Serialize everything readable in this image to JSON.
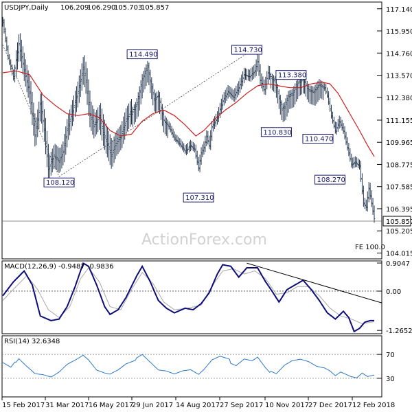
{
  "chart_data": [
    {
      "type": "ohlc",
      "title": "USDJPY,Daily",
      "ohlc_last": {
        "open": "106.209",
        "high": "106.290",
        "low": "105.703",
        "close": "105.857"
      },
      "current_price_label": "105.857",
      "fe_label": "FE 100.0",
      "watermark": "ActionForex.com",
      "ylim": [
        103.7,
        117.5
      ],
      "y_ticks": [
        "117.140",
        "115.950",
        "114.760",
        "113.570",
        "112.380",
        "111.155",
        "109.965",
        "108.775",
        "107.585",
        "106.395",
        "105.205",
        "104.015"
      ],
      "x_labels": [
        "15 Feb 2017",
        "31 Mar 2017",
        "16 May 2017",
        "29 Jun 2017",
        "14 Aug 2017",
        "27 Sep 2017",
        "10 Nov 2017",
        "27 Dec 2017",
        "12 Feb 2018"
      ],
      "price_series": [
        [
          0,
          116.5
        ],
        [
          4,
          114.6
        ],
        [
          8,
          113.5
        ],
        [
          12,
          115.2
        ],
        [
          16,
          113.8
        ],
        [
          20,
          112.6
        ],
        [
          24,
          110.3
        ],
        [
          28,
          112.0
        ],
        [
          31,
          110.6
        ],
        [
          34,
          108.5
        ],
        [
          38,
          109.2
        ],
        [
          42,
          108.9
        ],
        [
          45,
          109.4
        ],
        [
          48,
          110.6
        ],
        [
          52,
          111.6
        ],
        [
          56,
          112.6
        ],
        [
          60,
          113.9
        ],
        [
          62,
          113.2
        ],
        [
          65,
          111.4
        ],
        [
          68,
          110.8
        ],
        [
          72,
          111.3
        ],
        [
          75,
          110.4
        ],
        [
          79,
          109.6
        ],
        [
          81,
          109.2
        ],
        [
          84,
          109.8
        ],
        [
          88,
          110.2
        ],
        [
          92,
          111.1
        ],
        [
          96,
          111.6
        ],
        [
          100,
          112.1
        ],
        [
          104,
          113.4
        ],
        [
          108,
          114.1
        ],
        [
          110,
          113.3
        ],
        [
          113,
          112.3
        ],
        [
          116,
          112.5
        ],
        [
          120,
          111.2
        ],
        [
          124,
          110.8
        ],
        [
          128,
          110.2
        ],
        [
          132,
          109.9
        ],
        [
          136,
          109.5
        ],
        [
          140,
          109.8
        ],
        [
          143,
          109.6
        ],
        [
          146,
          108.6
        ],
        [
          148,
          109.4
        ],
        [
          150,
          109.7
        ],
        [
          152,
          110.3
        ],
        [
          154,
          109.8
        ],
        [
          156,
          110.8
        ],
        [
          160,
          111.3
        ],
        [
          164,
          112.2
        ],
        [
          168,
          112.7
        ],
        [
          172,
          112.4
        ],
        [
          176,
          112.9
        ],
        [
          180,
          113.6
        ],
        [
          184,
          113.5
        ],
        [
          188,
          113.8
        ],
        [
          190,
          114.3
        ],
        [
          192,
          113.3
        ],
        [
          195,
          112.8
        ],
        [
          198,
          113.7
        ],
        [
          200,
          113.5
        ],
        [
          203,
          113.3
        ],
        [
          206,
          112.4
        ],
        [
          208,
          111.8
        ],
        [
          210,
          111.9
        ],
        [
          213,
          112.5
        ],
        [
          216,
          112.6
        ],
        [
          220,
          113.2
        ],
        [
          224,
          113.4
        ],
        [
          228,
          112.8
        ],
        [
          232,
          112.7
        ],
        [
          236,
          113.1
        ],
        [
          240,
          112.9
        ],
        [
          242,
          112.5
        ],
        [
          245,
          111.4
        ],
        [
          248,
          110.6
        ],
        [
          251,
          111.1
        ],
        [
          254,
          110.6
        ],
        [
          257,
          109.7
        ],
        [
          260,
          108.8
        ],
        [
          263,
          108.9
        ],
        [
          266,
          108.7
        ],
        [
          269,
          106.7
        ],
        [
          271,
          106.5
        ],
        [
          273,
          107.5
        ],
        [
          275,
          106.7
        ],
        [
          277,
          105.857
        ]
      ],
      "moving_average": [
        [
          0,
          113.7
        ],
        [
          10,
          113.8
        ],
        [
          20,
          113.6
        ],
        [
          30,
          112.5
        ],
        [
          40,
          111.9
        ],
        [
          48,
          111.5
        ],
        [
          56,
          111.4
        ],
        [
          64,
          111.5
        ],
        [
          72,
          111.3
        ],
        [
          80,
          110.6
        ],
        [
          88,
          110.3
        ],
        [
          96,
          110.4
        ],
        [
          104,
          111.1
        ],
        [
          112,
          111.5
        ],
        [
          120,
          111.7
        ],
        [
          128,
          111.4
        ],
        [
          136,
          110.9
        ],
        [
          144,
          110.3
        ],
        [
          150,
          110.6
        ],
        [
          158,
          111.2
        ],
        [
          166,
          111.7
        ],
        [
          174,
          112.1
        ],
        [
          182,
          112.6
        ],
        [
          190,
          113.0
        ],
        [
          198,
          113.1
        ],
        [
          206,
          113.0
        ],
        [
          214,
          112.9
        ],
        [
          222,
          112.9
        ],
        [
          230,
          113.1
        ],
        [
          238,
          113.2
        ],
        [
          244,
          113.1
        ],
        [
          250,
          112.6
        ],
        [
          258,
          111.6
        ],
        [
          266,
          110.6
        ],
        [
          272,
          109.8
        ],
        [
          277,
          109.2
        ]
      ],
      "annotations": [
        {
          "label": "108.120",
          "x": 42,
          "price": 108.12
        },
        {
          "label": "114.490",
          "x": 104,
          "price": 114.49
        },
        {
          "label": "107.310",
          "x": 146,
          "price": 107.31
        },
        {
          "label": "114.730",
          "x": 182,
          "price": 114.73
        },
        {
          "label": "110.830",
          "x": 204,
          "price": 110.83
        },
        {
          "label": "113.380",
          "x": 215,
          "price": 113.38
        },
        {
          "label": "110.470",
          "x": 235,
          "price": 110.47
        },
        {
          "label": "108.270",
          "x": 244,
          "price": 108.27
        }
      ]
    },
    {
      "type": "line",
      "title": "MACD(12,26,9) -0.9487 -0.9836",
      "y_ticks": [
        "0.9047",
        "0.00",
        "-1.2652"
      ],
      "ylim": [
        -1.35,
        0.95
      ],
      "macd": [
        [
          0,
          -0.15
        ],
        [
          8,
          0.3
        ],
        [
          16,
          0.65
        ],
        [
          22,
          0.2
        ],
        [
          28,
          -0.8
        ],
        [
          36,
          -0.95
        ],
        [
          42,
          -0.9
        ],
        [
          48,
          -0.5
        ],
        [
          54,
          0.15
        ],
        [
          60,
          0.9
        ],
        [
          64,
          0.8
        ],
        [
          70,
          0.2
        ],
        [
          76,
          -0.5
        ],
        [
          80,
          -0.75
        ],
        [
          86,
          -0.6
        ],
        [
          92,
          -0.2
        ],
        [
          100,
          0.5
        ],
        [
          104,
          0.8
        ],
        [
          110,
          0.3
        ],
        [
          116,
          -0.3
        ],
        [
          122,
          -0.55
        ],
        [
          128,
          -0.7
        ],
        [
          136,
          -0.55
        ],
        [
          142,
          -0.6
        ],
        [
          148,
          -0.4
        ],
        [
          154,
          -0.05
        ],
        [
          160,
          0.55
        ],
        [
          164,
          0.85
        ],
        [
          170,
          0.8
        ],
        [
          176,
          0.45
        ],
        [
          182,
          0.75
        ],
        [
          190,
          0.75
        ],
        [
          196,
          0.3
        ],
        [
          200,
          0.05
        ],
        [
          206,
          -0.35
        ],
        [
          212,
          0.05
        ],
        [
          218,
          0.2
        ],
        [
          224,
          0.35
        ],
        [
          230,
          0.05
        ],
        [
          236,
          -0.3
        ],
        [
          242,
          -0.7
        ],
        [
          248,
          -0.9
        ],
        [
          254,
          -0.65
        ],
        [
          258,
          -0.85
        ],
        [
          262,
          -1.3
        ],
        [
          266,
          -1.2
        ],
        [
          270,
          -1.0
        ],
        [
          274,
          -0.95
        ],
        [
          277,
          -0.9487
        ]
      ],
      "signal": [
        [
          0,
          -0.3
        ],
        [
          10,
          0.15
        ],
        [
          18,
          0.5
        ],
        [
          26,
          0.05
        ],
        [
          34,
          -0.6
        ],
        [
          42,
          -0.85
        ],
        [
          50,
          -0.5
        ],
        [
          58,
          0.4
        ],
        [
          64,
          0.75
        ],
        [
          72,
          0.3
        ],
        [
          80,
          -0.5
        ],
        [
          88,
          -0.6
        ],
        [
          96,
          0.05
        ],
        [
          104,
          0.6
        ],
        [
          112,
          0.25
        ],
        [
          120,
          -0.35
        ],
        [
          128,
          -0.6
        ],
        [
          138,
          -0.55
        ],
        [
          148,
          -0.45
        ],
        [
          156,
          0.15
        ],
        [
          164,
          0.65
        ],
        [
          172,
          0.72
        ],
        [
          180,
          0.55
        ],
        [
          188,
          0.65
        ],
        [
          196,
          0.4
        ],
        [
          204,
          -0.1
        ],
        [
          212,
          -0.05
        ],
        [
          220,
          0.15
        ],
        [
          228,
          0.15
        ],
        [
          236,
          -0.15
        ],
        [
          244,
          -0.55
        ],
        [
          252,
          -0.8
        ],
        [
          260,
          -0.9
        ],
        [
          268,
          -1.05
        ],
        [
          277,
          -0.9836
        ]
      ],
      "trendline": [
        [
          182,
          0.9
        ],
        [
          277,
          -0.38
        ]
      ]
    },
    {
      "type": "line",
      "title": "RSI(14) 32.6348",
      "y_ticks": [
        "70",
        "30"
      ],
      "ylim": [
        0,
        100
      ],
      "rsi": [
        [
          0,
          56
        ],
        [
          6,
          48
        ],
        [
          12,
          65
        ],
        [
          18,
          52
        ],
        [
          24,
          40
        ],
        [
          30,
          38
        ],
        [
          36,
          34
        ],
        [
          42,
          42
        ],
        [
          48,
          55
        ],
        [
          54,
          62
        ],
        [
          60,
          70
        ],
        [
          64,
          62
        ],
        [
          70,
          45
        ],
        [
          76,
          40
        ],
        [
          80,
          38
        ],
        [
          86,
          45
        ],
        [
          92,
          55
        ],
        [
          98,
          60
        ],
        [
          104,
          68
        ],
        [
          110,
          55
        ],
        [
          116,
          42
        ],
        [
          122,
          40
        ],
        [
          128,
          35
        ],
        [
          134,
          40
        ],
        [
          140,
          42
        ],
        [
          146,
          34
        ],
        [
          150,
          42
        ],
        [
          156,
          58
        ],
        [
          162,
          64
        ],
        [
          168,
          60
        ],
        [
          174,
          54
        ],
        [
          180,
          65
        ],
        [
          186,
          62
        ],
        [
          190,
          68
        ],
        [
          196,
          50
        ],
        [
          200,
          40
        ],
        [
          204,
          36
        ],
        [
          210,
          50
        ],
        [
          216,
          58
        ],
        [
          222,
          60
        ],
        [
          228,
          56
        ],
        [
          234,
          48
        ],
        [
          240,
          45
        ],
        [
          244,
          40
        ],
        [
          248,
          32
        ],
        [
          252,
          38
        ],
        [
          256,
          34
        ],
        [
          260,
          30
        ],
        [
          264,
          28
        ],
        [
          268,
          36
        ],
        [
          272,
          30
        ],
        [
          277,
          32.6
        ]
      ]
    }
  ]
}
